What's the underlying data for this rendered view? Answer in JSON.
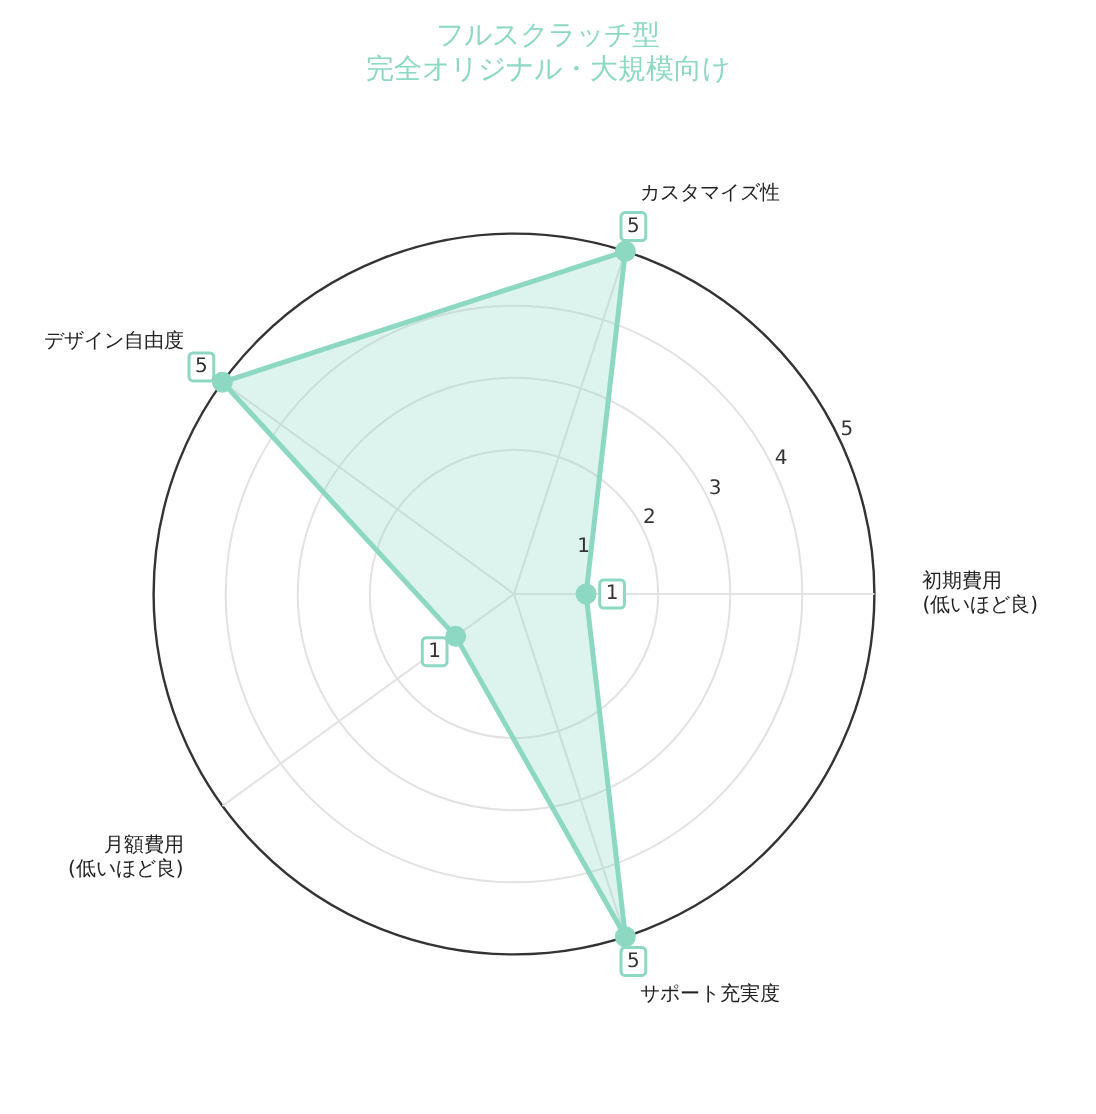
{
  "chart_data": {
    "type": "radar",
    "title": "フルスクラッチ型",
    "subtitle": "完全オリジナル・大規模向け",
    "categories": [
      "カスタマイズ性",
      "初期費用\n(低いほど良)",
      "サポート充実度",
      "月額費用\n(低いほど良)",
      "デザイン自由度"
    ],
    "series": [
      {
        "color": "#8dd8c3",
        "values": [
          5,
          1,
          5,
          1,
          5
        ]
      }
    ],
    "ylim": [
      0,
      5
    ],
    "yticks": [
      1,
      2,
      3,
      4,
      5
    ],
    "grid": true,
    "legend": false,
    "marker": "circle",
    "data_labels": true
  }
}
